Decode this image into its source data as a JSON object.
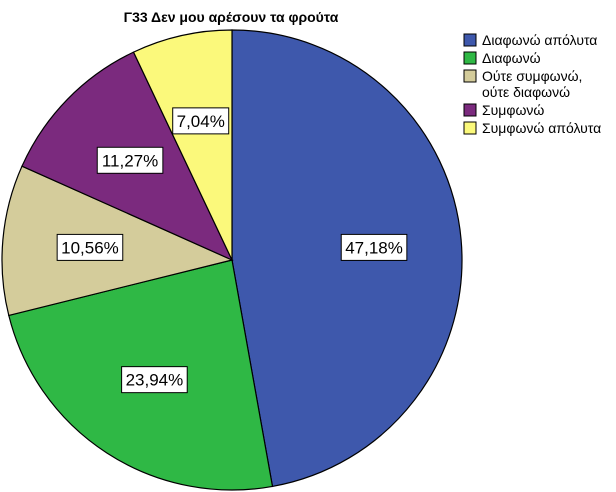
{
  "chart_data": {
    "type": "pie",
    "title": "Γ33 Δεν μου αρέσουν τα φρούτα",
    "slices": [
      {
        "name": "Διαφωνώ απόλυτα",
        "value": 47.18,
        "label": "47,18%",
        "color": "#3e58ac"
      },
      {
        "name": "Διαφωνώ",
        "value": 23.94,
        "label": "23,94%",
        "color": "#2fb845"
      },
      {
        "name": "Ούτε συμφωνώ, ούτε διαφωνώ",
        "legend_lines": [
          "Ούτε συμφωνώ,",
          "ούτε διαφωνώ"
        ],
        "value": 10.56,
        "label": "10,56%",
        "color": "#d4cc9b"
      },
      {
        "name": "Συμφωνώ",
        "value": 11.27,
        "label": "11,27%",
        "color": "#7b2a7e"
      },
      {
        "name": "Συμφωνώ απόλυτα",
        "value": 7.04,
        "label": "7,04%",
        "color": "#fbf97b"
      }
    ],
    "legend_position": "top-right",
    "start_angle_deg": 0,
    "direction": "clockwise"
  }
}
